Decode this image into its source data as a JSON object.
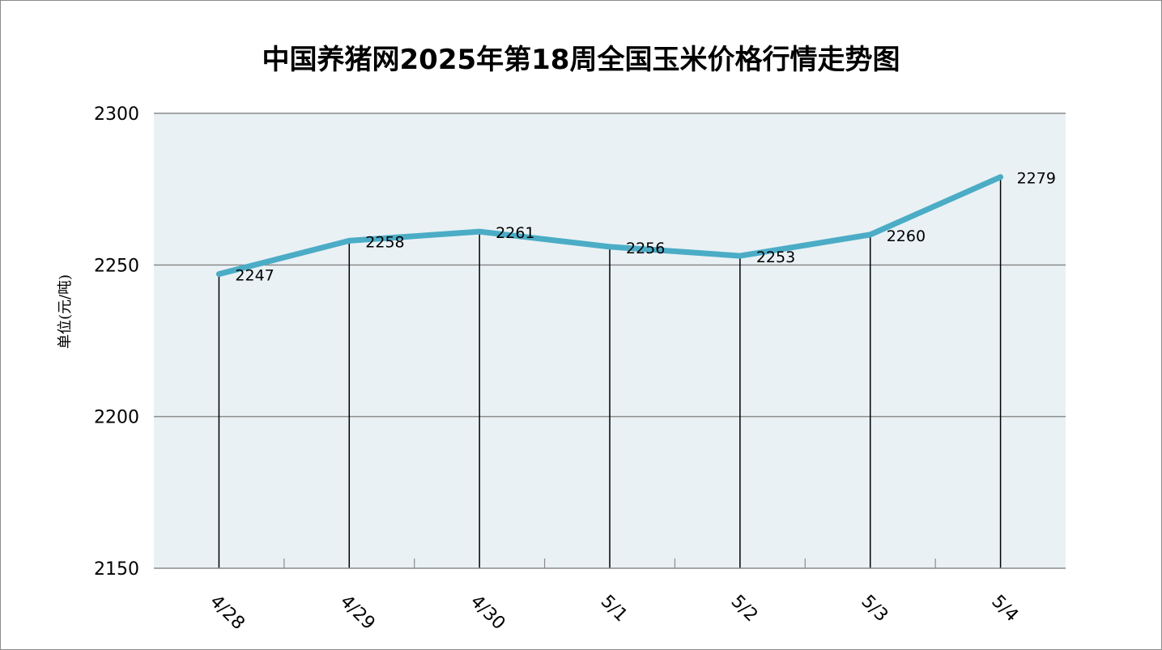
{
  "chart_data": {
    "type": "line",
    "title": "中国养猪网2025年第18周全国玉米价格行情走势图",
    "ylabel": "单位(元/吨)",
    "xlabel": "",
    "categories": [
      "4/28",
      "4/29",
      "4/30",
      "5/1",
      "5/2",
      "5/3",
      "5/4"
    ],
    "series": [
      {
        "values": [
          2247,
          2258,
          2261,
          2256,
          2253,
          2260,
          2279
        ]
      }
    ],
    "data_labels": [
      "2247",
      "2258",
      "2261",
      "2256",
      "2253",
      "2260",
      "2279"
    ],
    "ylim": [
      2150,
      2300
    ],
    "yticks": [
      2150,
      2200,
      2250,
      2300
    ],
    "ytick_labels": [
      "2150",
      "2200",
      "2250",
      "2300"
    ],
    "drop_lines": true,
    "grid": true,
    "colors": {
      "line": "#4bacc6",
      "plot_background": "#e9f1f4",
      "grid": "#8c8c8c",
      "drop_line": "#000000"
    }
  }
}
